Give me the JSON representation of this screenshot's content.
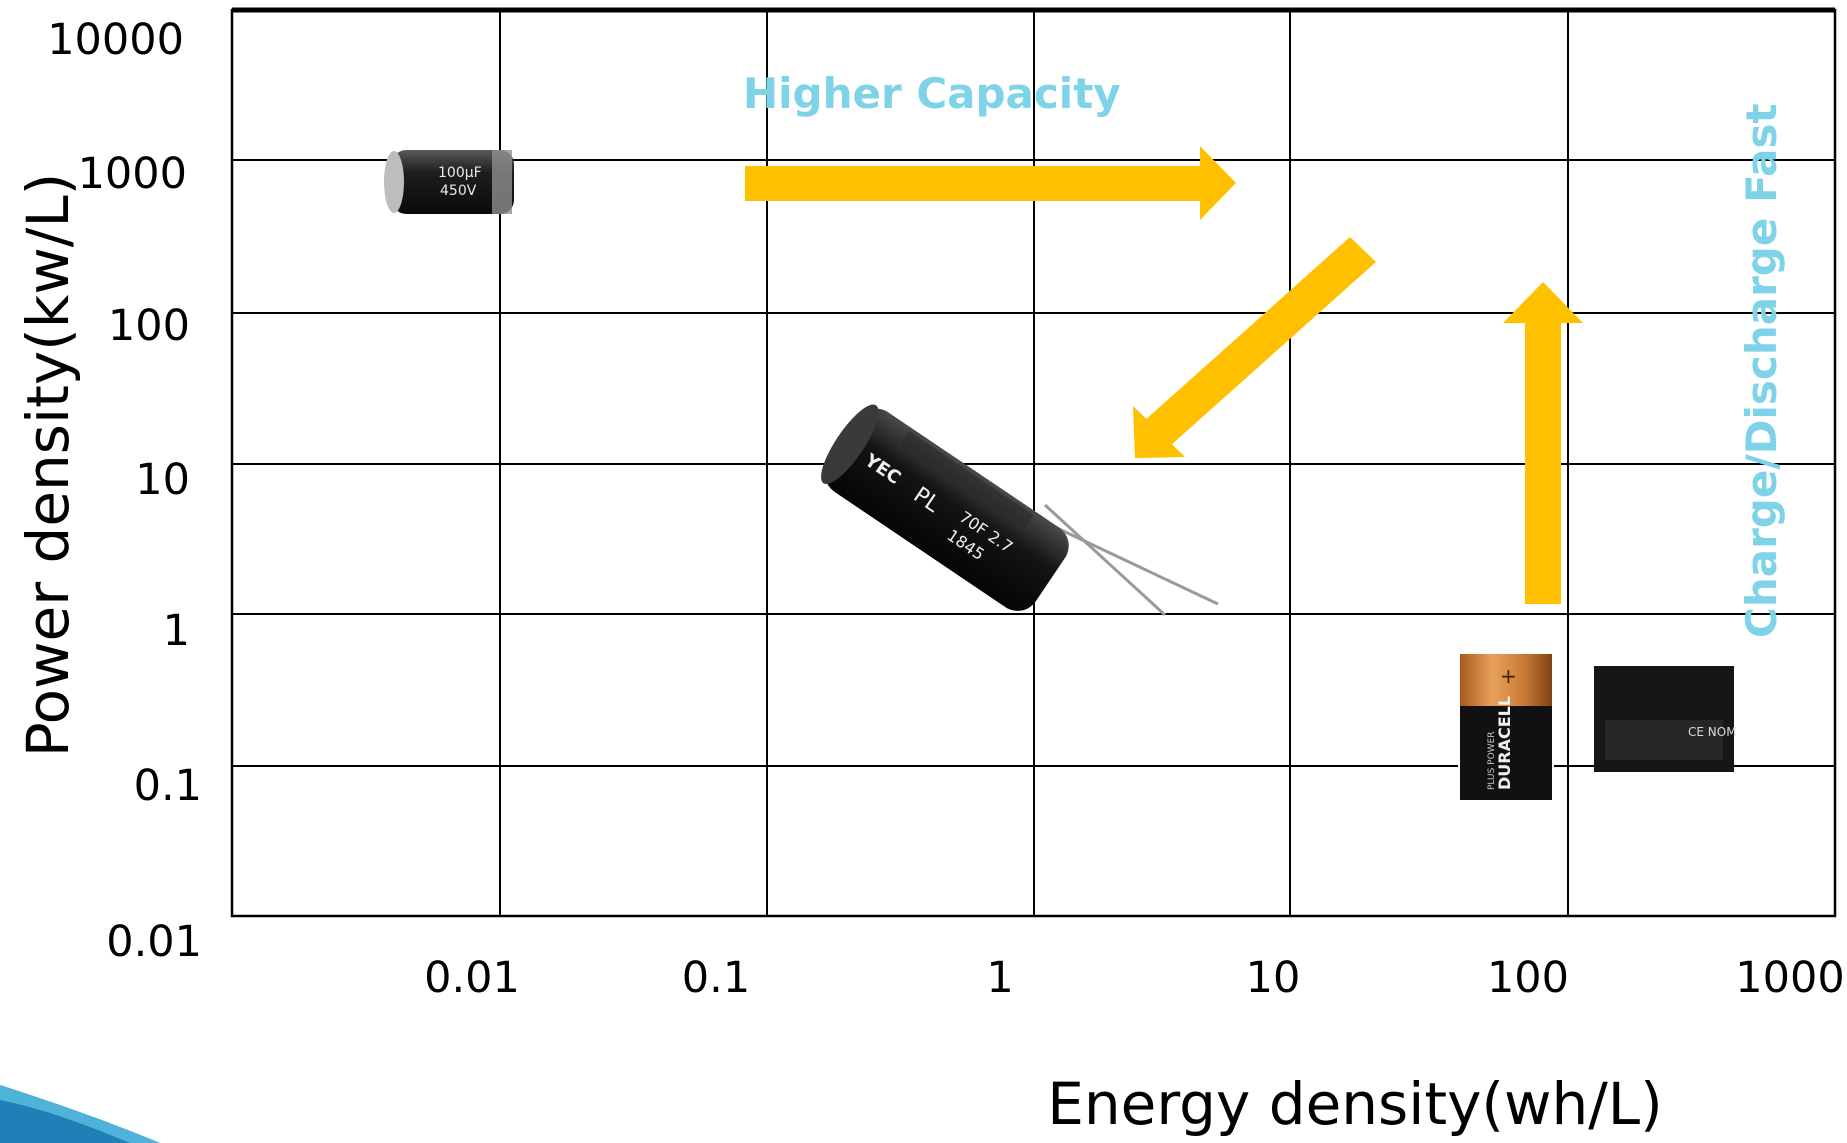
{
  "chart_data": {
    "type": "scatter",
    "xlabel": "Energy density(wh/L)",
    "ylabel": "Power density(kw/L)",
    "x_scale": "log",
    "y_scale": "log",
    "x_ticks": [
      "0.01",
      "0.1",
      "1",
      "10",
      "100",
      "1000"
    ],
    "y_ticks": [
      "10000",
      "1000",
      "100",
      "10",
      "1",
      "0.1",
      "0.01"
    ],
    "grid": true,
    "annotations": [
      {
        "text": "Higher Capacity",
        "color": "#7fd3e8"
      },
      {
        "text": "Charge/Discharge Fast",
        "color": "#7fd3e8"
      }
    ],
    "arrow_color": "#ffc000",
    "items": [
      {
        "label": "electrolytic capacitor",
        "x": 0.007,
        "y": 800,
        "print_a": "100μF",
        "print_b": "450V"
      },
      {
        "label": "supercapacitor",
        "x": 0.5,
        "y": 5,
        "print_a": "PL",
        "print_b": "70F 2.7",
        "print_c": "1845",
        "logo": "YEC"
      },
      {
        "label": "alkaline battery",
        "x": 40,
        "y": 0.3,
        "brand": "DURACELL",
        "sub": "PLUS POWER"
      },
      {
        "label": "li-ion battery pack",
        "x": 200,
        "y": 0.3,
        "marks": "CE NOM"
      }
    ]
  }
}
